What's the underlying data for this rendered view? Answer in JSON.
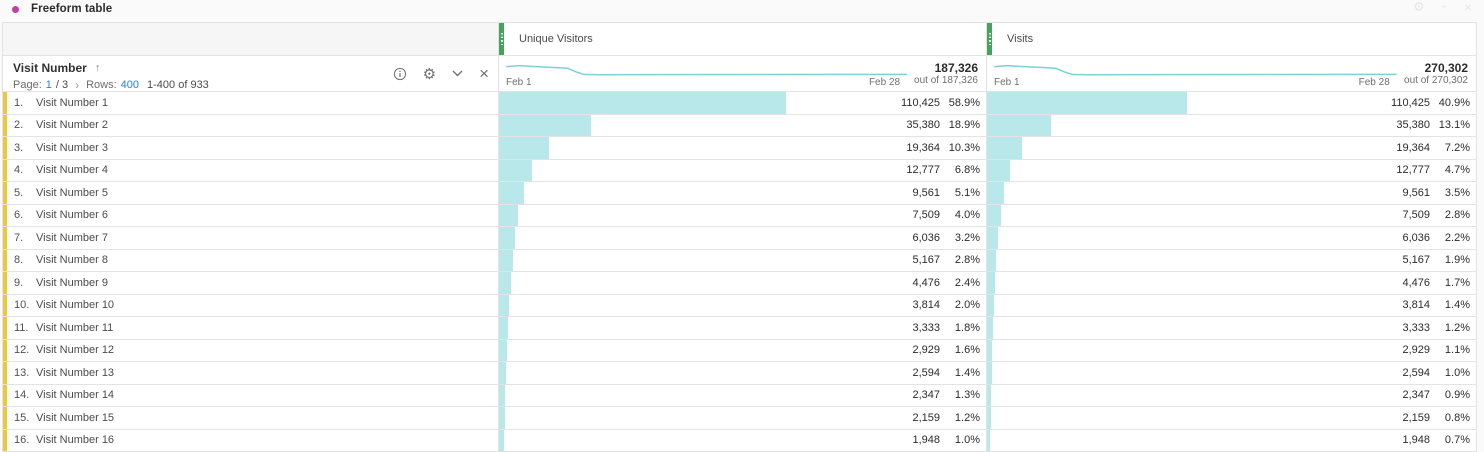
{
  "title": {
    "text": "Freeform table"
  },
  "window_controls": {
    "icons": [
      "gear-icon",
      "chevron-down-icon",
      "close-icon"
    ]
  },
  "dimension_header": {
    "name": "Visit Number",
    "sort_arrow": "↑",
    "page_label": "Page:",
    "page_current": "1",
    "page_total": "/ 3",
    "next_page": "›",
    "rows_label": "Rows:",
    "rows_value": "400",
    "range_text": "1-400 of 933"
  },
  "toolbar": {
    "icons": [
      "info-icon",
      "gear-icon",
      "chevron-down-icon",
      "close-icon"
    ]
  },
  "columns": [
    {
      "label": "Unique Visitors",
      "total": "187,326",
      "out_of": "out of 187,326",
      "axis_start": "Feb 1",
      "axis_end": "Feb 28"
    },
    {
      "label": "Visits",
      "total": "270,302",
      "out_of": "out of 270,302",
      "axis_start": "Feb 1",
      "axis_end": "Feb 28"
    }
  ],
  "rows": [
    {
      "rank": "1.",
      "label": "Visit Number 1",
      "cells": [
        {
          "value": "110,425",
          "pct": "58.9%",
          "bar": 58.9
        },
        {
          "value": "110,425",
          "pct": "40.9%",
          "bar": 40.9
        }
      ]
    },
    {
      "rank": "2.",
      "label": "Visit Number 2",
      "cells": [
        {
          "value": "35,380",
          "pct": "18.9%",
          "bar": 18.9
        },
        {
          "value": "35,380",
          "pct": "13.1%",
          "bar": 13.1
        }
      ]
    },
    {
      "rank": "3.",
      "label": "Visit Number 3",
      "cells": [
        {
          "value": "19,364",
          "pct": "10.3%",
          "bar": 10.3
        },
        {
          "value": "19,364",
          "pct": "7.2%",
          "bar": 7.2
        }
      ]
    },
    {
      "rank": "4.",
      "label": "Visit Number 4",
      "cells": [
        {
          "value": "12,777",
          "pct": "6.8%",
          "bar": 6.8
        },
        {
          "value": "12,777",
          "pct": "4.7%",
          "bar": 4.7
        }
      ]
    },
    {
      "rank": "5.",
      "label": "Visit Number 5",
      "cells": [
        {
          "value": "9,561",
          "pct": "5.1%",
          "bar": 5.1
        },
        {
          "value": "9,561",
          "pct": "3.5%",
          "bar": 3.5
        }
      ]
    },
    {
      "rank": "6.",
      "label": "Visit Number 6",
      "cells": [
        {
          "value": "7,509",
          "pct": "4.0%",
          "bar": 4.0
        },
        {
          "value": "7,509",
          "pct": "2.8%",
          "bar": 2.8
        }
      ]
    },
    {
      "rank": "7.",
      "label": "Visit Number 7",
      "cells": [
        {
          "value": "6,036",
          "pct": "3.2%",
          "bar": 3.2
        },
        {
          "value": "6,036",
          "pct": "2.2%",
          "bar": 2.2
        }
      ]
    },
    {
      "rank": "8.",
      "label": "Visit Number 8",
      "cells": [
        {
          "value": "5,167",
          "pct": "2.8%",
          "bar": 2.8
        },
        {
          "value": "5,167",
          "pct": "1.9%",
          "bar": 1.9
        }
      ]
    },
    {
      "rank": "9.",
      "label": "Visit Number 9",
      "cells": [
        {
          "value": "4,476",
          "pct": "2.4%",
          "bar": 2.4
        },
        {
          "value": "4,476",
          "pct": "1.7%",
          "bar": 1.7
        }
      ]
    },
    {
      "rank": "10.",
      "label": "Visit Number 10",
      "cells": [
        {
          "value": "3,814",
          "pct": "2.0%",
          "bar": 2.0
        },
        {
          "value": "3,814",
          "pct": "1.4%",
          "bar": 1.4
        }
      ]
    },
    {
      "rank": "11.",
      "label": "Visit Number 11",
      "cells": [
        {
          "value": "3,333",
          "pct": "1.8%",
          "bar": 1.8
        },
        {
          "value": "3,333",
          "pct": "1.2%",
          "bar": 1.2
        }
      ]
    },
    {
      "rank": "12.",
      "label": "Visit Number 12",
      "cells": [
        {
          "value": "2,929",
          "pct": "1.6%",
          "bar": 1.6
        },
        {
          "value": "2,929",
          "pct": "1.1%",
          "bar": 1.1
        }
      ]
    },
    {
      "rank": "13.",
      "label": "Visit Number 13",
      "cells": [
        {
          "value": "2,594",
          "pct": "1.4%",
          "bar": 1.4
        },
        {
          "value": "2,594",
          "pct": "1.0%",
          "bar": 1.0
        }
      ]
    },
    {
      "rank": "14.",
      "label": "Visit Number 14",
      "cells": [
        {
          "value": "2,347",
          "pct": "1.3%",
          "bar": 1.3
        },
        {
          "value": "2,347",
          "pct": "0.9%",
          "bar": 0.9
        }
      ]
    },
    {
      "rank": "15.",
      "label": "Visit Number 15",
      "cells": [
        {
          "value": "2,159",
          "pct": "1.2%",
          "bar": 1.2
        },
        {
          "value": "2,159",
          "pct": "0.8%",
          "bar": 0.8
        }
      ]
    },
    {
      "rank": "16.",
      "label": "Visit Number 16",
      "cells": [
        {
          "value": "1,948",
          "pct": "1.0%",
          "bar": 1.0
        },
        {
          "value": "1,948",
          "pct": "0.7%",
          "bar": 0.7
        }
      ]
    }
  ],
  "colors": {
    "bar_fill": "#b8e8e9",
    "sparkline": "#7ed0d6",
    "handle_green": "#45a35a",
    "row_accent_yellow": "#ecc83d",
    "link_blue": "#2680eb",
    "title_bullet_magenta": "#c43ca5"
  }
}
